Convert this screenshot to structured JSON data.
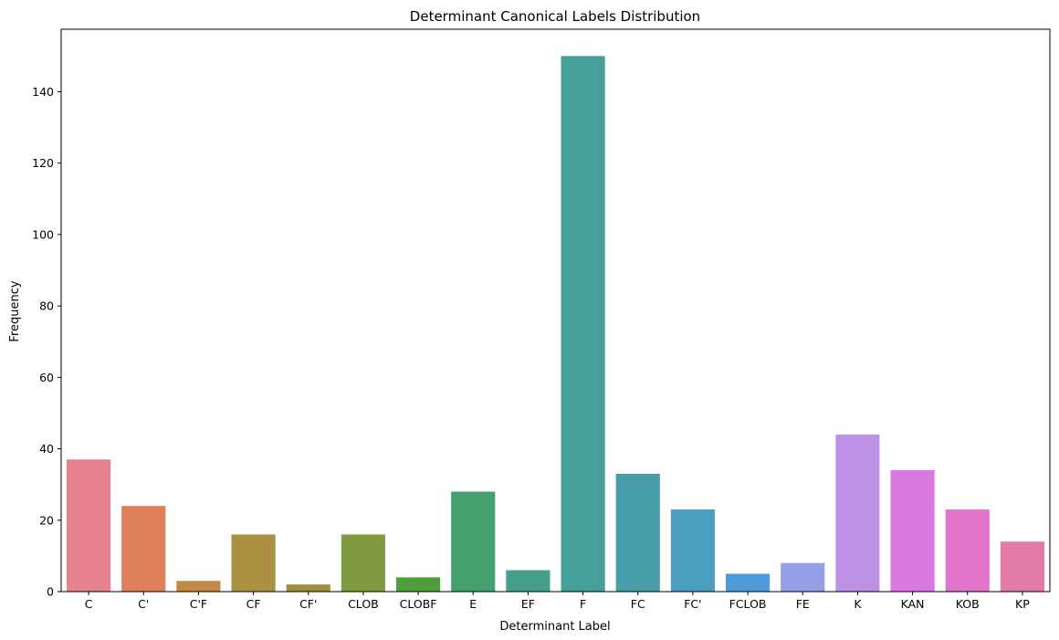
{
  "chart_data": {
    "type": "bar",
    "title": "Determinant Canonical Labels Distribution",
    "xlabel": "Determinant Label",
    "ylabel": "Frequency",
    "ylim": [
      0,
      157.5
    ],
    "yticks": [
      0,
      20,
      40,
      60,
      80,
      100,
      120,
      140
    ],
    "categories": [
      "C",
      "C'",
      "C'F",
      "CF",
      "CF'",
      "CLOB",
      "CLOBF",
      "E",
      "EF",
      "F",
      "FC",
      "FC'",
      "FCLOB",
      "FE",
      "K",
      "KAN",
      "KOB",
      "KP"
    ],
    "values": [
      37,
      24,
      3,
      16,
      2,
      16,
      4,
      28,
      6,
      150,
      33,
      23,
      5,
      8,
      44,
      34,
      23,
      14
    ],
    "colors": [
      "#e88190",
      "#e07f5b",
      "#c08a44",
      "#ab903f",
      "#a08f3a",
      "#7f9a40",
      "#4e9e3e",
      "#44a06f",
      "#44a08a",
      "#459f9b",
      "#479ea9",
      "#4a9ec0",
      "#4e9bd9",
      "#979ee8",
      "#bd91e4",
      "#da78e2",
      "#e275cb",
      "#e27ba8"
    ],
    "grid": false,
    "legend": "none"
  }
}
